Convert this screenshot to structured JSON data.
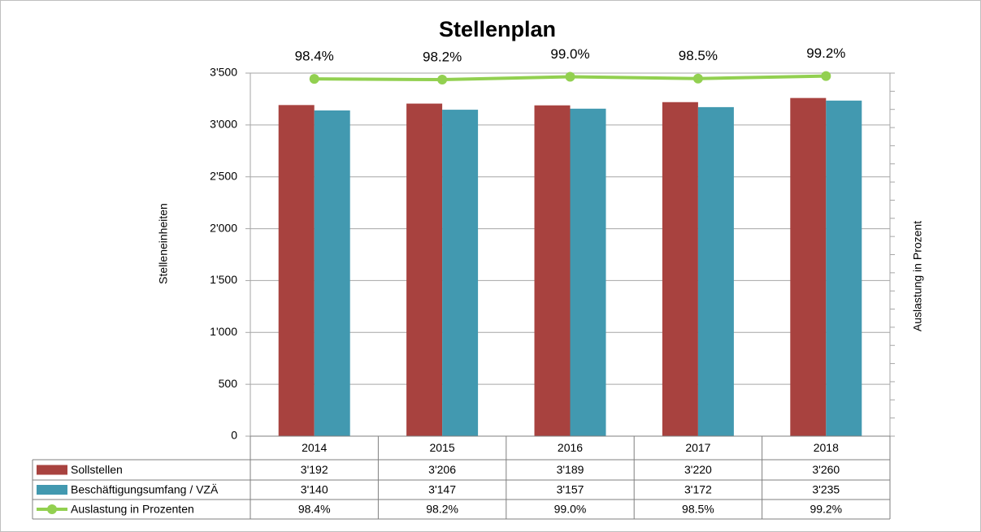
{
  "chart_data": {
    "type": "bar",
    "title": "Stellenplan",
    "y_label": "Stelleneinheiten",
    "y2_label": "Auslastung in Prozent",
    "categories": [
      "2014",
      "2015",
      "2016",
      "2017",
      "2018"
    ],
    "series": [
      {
        "name": "Sollstellen",
        "type": "bar",
        "color": "#a8423f",
        "values": [
          3192,
          3206,
          3189,
          3220,
          3260
        ],
        "value_labels": [
          "3'192",
          "3'206",
          "3'189",
          "3'220",
          "3'260"
        ]
      },
      {
        "name": "Beschäftigungsumfang / VZÄ",
        "type": "bar",
        "color": "#4299b0",
        "values": [
          3140,
          3147,
          3157,
          3172,
          3235
        ],
        "value_labels": [
          "3'140",
          "3'147",
          "3'157",
          "3'172",
          "3'235"
        ]
      },
      {
        "name": "Auslastung in Prozenten",
        "type": "line",
        "axis": "y2",
        "color": "#92d050",
        "values": [
          98.4,
          98.2,
          99.0,
          98.5,
          99.2
        ],
        "value_labels": [
          "98.4%",
          "98.2%",
          "99.0%",
          "98.5%",
          "99.2%"
        ]
      }
    ],
    "ylim": [
      0,
      3500
    ],
    "yticks": [
      0,
      500,
      {
        "value": 1000,
        "label": "1'000"
      },
      {
        "value": 1500,
        "label": "1'500"
      },
      {
        "value": 2000,
        "label": "2'000"
      },
      {
        "value": 2500,
        "label": "2'500"
      },
      {
        "value": 3000,
        "label": "3'000"
      },
      {
        "value": 3500,
        "label": "3'500"
      }
    ],
    "y2lim": [
      0,
      100
    ],
    "y2ticks": [
      0,
      5,
      10,
      15,
      20,
      25,
      30,
      35,
      40,
      45,
      50,
      55,
      60,
      65,
      70,
      75,
      80,
      85,
      90,
      95,
      100
    ],
    "grid": true
  }
}
